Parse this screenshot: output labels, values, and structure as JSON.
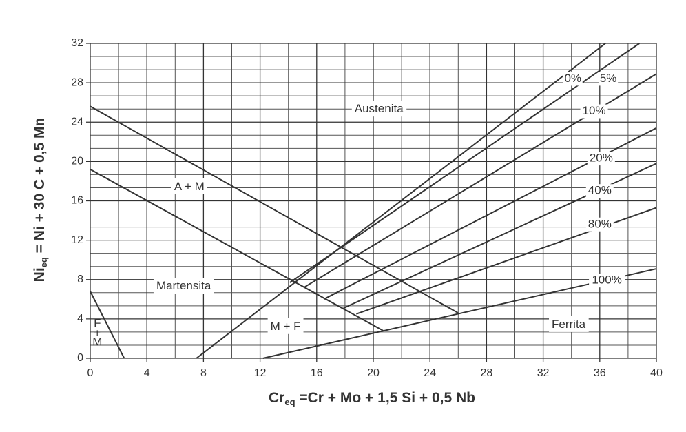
{
  "chart_data": {
    "type": "line",
    "xlabel": {
      "main": "Cr",
      "sub": "eq",
      "rest": " =Cr + Mo + 1,5 Si + 0,5 Nb"
    },
    "ylabel": {
      "main": "Ni",
      "sub": "eq",
      "rest": " = Ni + 30 C + 0,5 Mn"
    },
    "xlim": [
      0,
      40
    ],
    "ylim": [
      0,
      32
    ],
    "xticks": [
      0,
      4,
      8,
      12,
      16,
      20,
      24,
      28,
      32,
      36,
      40
    ],
    "yticks": [
      0,
      4,
      8,
      12,
      16,
      20,
      24,
      28,
      32
    ],
    "grid": true,
    "series": [
      {
        "color": "#333333",
        "x": [
          0,
          26
        ],
        "values": [
          25.6,
          4.6
        ]
      },
      {
        "color": "#333333",
        "x": [
          0,
          20.7
        ],
        "values": [
          19.2,
          2.8
        ]
      },
      {
        "color": "#333333",
        "x": [
          0,
          2.4
        ],
        "values": [
          6.8,
          0
        ]
      },
      {
        "name": "0%",
        "color": "#333333",
        "x": [
          7.5,
          36.4
        ],
        "values": [
          0,
          32
        ]
      },
      {
        "name": "5%",
        "color": "#333333",
        "x": [
          14.1,
          38.8
        ],
        "values": [
          7.7,
          32
        ]
      },
      {
        "name": "10%",
        "color": "#333333",
        "x": [
          15.1,
          40
        ],
        "values": [
          7.2,
          28.9
        ]
      },
      {
        "name": "20%",
        "color": "#333333",
        "x": [
          16.5,
          40
        ],
        "values": [
          6,
          23.4
        ]
      },
      {
        "name": "40%",
        "color": "#333333",
        "x": [
          17.9,
          40
        ],
        "values": [
          5.1,
          19.8
        ]
      },
      {
        "name": "80%",
        "color": "#333333",
        "x": [
          18.8,
          40
        ],
        "values": [
          4.5,
          15.3
        ]
      },
      {
        "name": "100%",
        "color": "#333333",
        "x": [
          12.2,
          40
        ],
        "values": [
          0,
          9.1
        ]
      }
    ],
    "annotations": [
      "Austenita",
      "A + M",
      "Martensita",
      "M + F",
      "Ferrita",
      "F",
      "+",
      "M"
    ]
  }
}
